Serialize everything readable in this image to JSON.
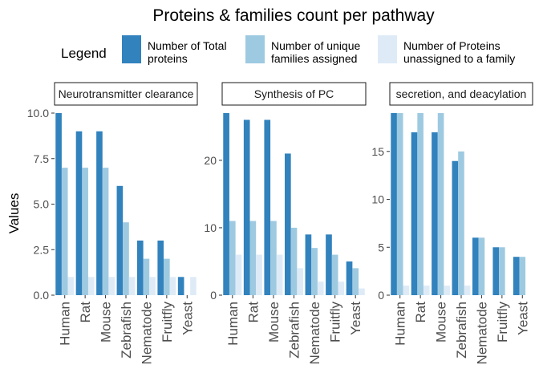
{
  "chart_data": {
    "type": "bar",
    "title": "Proteins & families count per pathway",
    "ylabel": "Values",
    "xlabel": "",
    "legend": {
      "title": "Legend",
      "placement": "top",
      "entries": [
        {
          "lines": [
            "Number of Total",
            "proteins"
          ],
          "color": "#3182bd"
        },
        {
          "lines": [
            "Number of unique",
            "families assigned"
          ],
          "color": "#9ecae1"
        },
        {
          "lines": [
            "Number of Proteins",
            "unassigned to a family"
          ],
          "color": "#deebf7"
        }
      ]
    },
    "categories": [
      "Human",
      "Rat",
      "Mouse",
      "Zebrafish",
      "Nematode",
      "Fruitfly",
      "Yeast"
    ],
    "grid": false,
    "panels": [
      {
        "strip_label": "Neurotransmitter clearance",
        "ylim": [
          0,
          10
        ],
        "yticks": [
          0.0,
          2.5,
          5.0,
          7.5,
          10.0
        ],
        "ytick_labels": [
          "0.0",
          "2.5",
          "5.0",
          "7.5",
          "10.0"
        ],
        "series": [
          {
            "values": [
              10,
              9,
              9,
              6,
              3,
              3,
              1
            ]
          },
          {
            "values": [
              7,
              7,
              7,
              4,
              2,
              2,
              0
            ]
          },
          {
            "values": [
              1,
              1,
              1,
              1,
              1,
              1,
              1
            ]
          }
        ]
      },
      {
        "strip_label": "Synthesis of PC",
        "ylim": [
          0,
          27
        ],
        "yticks": [
          0,
          10,
          20
        ],
        "ytick_labels": [
          "0",
          "10",
          "20"
        ],
        "series": [
          {
            "values": [
              27,
              26,
              26,
              21,
              9,
              9,
              5
            ]
          },
          {
            "values": [
              11,
              11,
              11,
              10,
              7,
              6,
              4
            ]
          },
          {
            "values": [
              6,
              6,
              6,
              4,
              2,
              2,
              1
            ]
          }
        ]
      },
      {
        "strip_label": "secretion, and deacylation",
        "ylim": [
          0,
          19
        ],
        "yticks": [
          0,
          5,
          10,
          15
        ],
        "ytick_labels": [
          "0",
          "5",
          "10",
          "15"
        ],
        "series": [
          {
            "values": [
              19,
              17,
              17,
              14,
              6,
              5,
              4
            ]
          },
          {
            "values": [
              19,
              19,
              19,
              15,
              6,
              5,
              4
            ]
          },
          {
            "values": [
              1,
              1,
              1,
              1,
              0,
              0,
              0
            ]
          }
        ]
      }
    ]
  }
}
